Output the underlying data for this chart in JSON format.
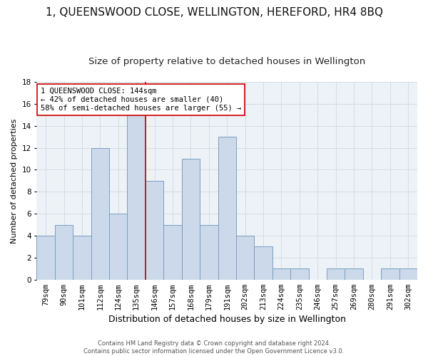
{
  "title": "1, QUEENSWOOD CLOSE, WELLINGTON, HEREFORD, HR4 8BQ",
  "subtitle": "Size of property relative to detached houses in Wellington",
  "xlabel": "Distribution of detached houses by size in Wellington",
  "ylabel": "Number of detached properties",
  "footnote1": "Contains HM Land Registry data © Crown copyright and database right 2024.",
  "footnote2": "Contains public sector information licensed under the Open Government Licence v3.0.",
  "categories": [
    "79sqm",
    "90sqm",
    "101sqm",
    "112sqm",
    "124sqm",
    "135sqm",
    "146sqm",
    "157sqm",
    "168sqm",
    "179sqm",
    "191sqm",
    "202sqm",
    "213sqm",
    "224sqm",
    "235sqm",
    "246sqm",
    "257sqm",
    "269sqm",
    "280sqm",
    "291sqm",
    "302sqm"
  ],
  "values": [
    4,
    5,
    4,
    12,
    6,
    15,
    9,
    5,
    11,
    5,
    13,
    4,
    3,
    1,
    1,
    0,
    1,
    1,
    0,
    1,
    1
  ],
  "bar_color": "#ccd9ea",
  "bar_edge_color": "#7a9fc2",
  "bar_linewidth": 0.7,
  "ref_line_color": "#cc0000",
  "annotation_text": "1 QUEENSWOOD CLOSE: 144sqm\n← 42% of detached houses are smaller (40)\n58% of semi-detached houses are larger (55) →",
  "annotation_box_color": "white",
  "annotation_box_edge": "#cc0000",
  "ylim": [
    0,
    18
  ],
  "yticks": [
    0,
    2,
    4,
    6,
    8,
    10,
    12,
    14,
    16,
    18
  ],
  "grid_color": "#d0d8e0",
  "background_color": "#edf2f7",
  "title_fontsize": 11,
  "subtitle_fontsize": 9.5,
  "xlabel_fontsize": 9,
  "ylabel_fontsize": 8,
  "tick_fontsize": 7.5,
  "annotation_fontsize": 7.5,
  "footnote_fontsize": 6
}
